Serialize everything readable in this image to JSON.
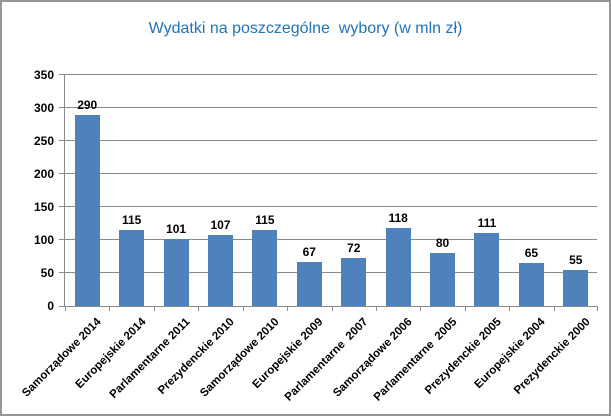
{
  "chart_data": {
    "type": "bar",
    "title": "Wydatki na poszczególne  wybory (w mln zł)",
    "categories": [
      "Samorządowe 2014",
      "Europejskie 2014",
      "Parlamentarne 2011",
      "Prezydenckie 2010",
      "Samorządowe 2010",
      "Europejskie 2009",
      "Parlamentarne  2007",
      "Samorządowe 2006",
      "Parlamentarne  2005",
      "Prezydenckie 2005",
      "Europejskie 2004",
      "Prezydenckie 2000"
    ],
    "values": [
      290,
      115,
      101,
      107,
      115,
      67,
      72,
      118,
      80,
      111,
      65,
      55
    ],
    "xlabel": "",
    "ylabel": "",
    "ylim": [
      0,
      350
    ],
    "ytick_step": 50,
    "grid": true,
    "legend_position": "none",
    "data_labels": true,
    "colors": {
      "bar": "#4F81BD",
      "title": "#2272B9",
      "gridline": "#8A8A8A",
      "axis": "#8A8A8A",
      "text": "#000000",
      "background": "#FFFFFF",
      "border": "#969696"
    }
  }
}
